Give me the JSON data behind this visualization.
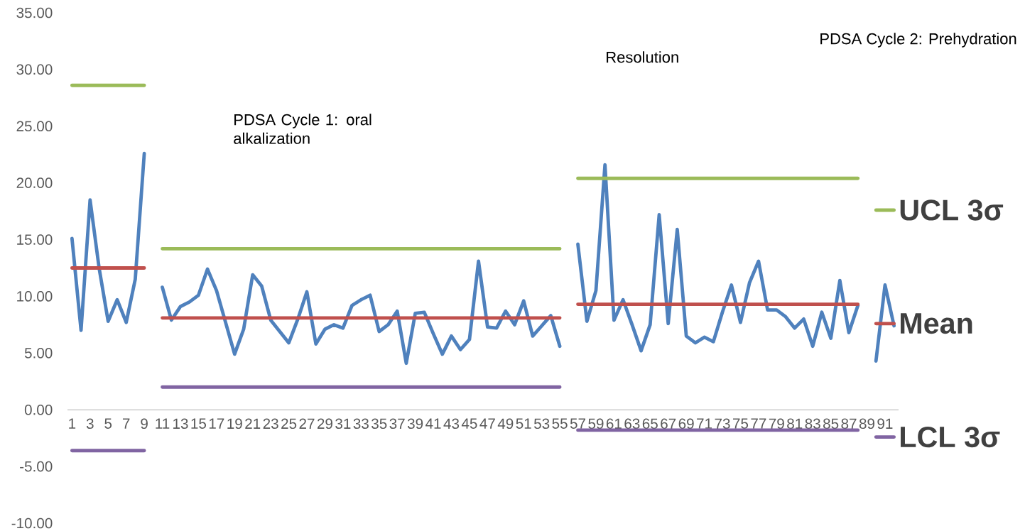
{
  "chart_data": {
    "type": "line",
    "annotations": [
      "PDSA Cycle 1: oral alkalization",
      "Resolution",
      "PDSA Cycle 2: Prehydration"
    ],
    "categories": [
      "1",
      null,
      "3",
      null,
      "5",
      null,
      "7",
      null,
      "9",
      null,
      "11",
      null,
      "13",
      null,
      "15",
      null,
      "17",
      null,
      "19",
      null,
      "21",
      null,
      "23",
      null,
      "25",
      null,
      "27",
      null,
      "29",
      null,
      "31",
      null,
      "33",
      null,
      "35",
      null,
      "37",
      null,
      "39",
      null,
      "41",
      null,
      "43",
      null,
      "45",
      null,
      "47",
      null,
      "49",
      null,
      "51",
      null,
      "53",
      null,
      "55",
      null,
      "57",
      null,
      "59",
      null,
      "61",
      null,
      "63",
      null,
      "65",
      null,
      "67",
      null,
      "69",
      null,
      "71",
      null,
      "73",
      null,
      "75",
      null,
      "77",
      null,
      "79",
      null,
      "81",
      null,
      "83",
      null,
      "85",
      null,
      "87",
      null,
      "89",
      null,
      "91",
      null
    ],
    "series": [
      {
        "color": "#4f81bd",
        "values": [
          15.1,
          7.0,
          18.5,
          12.5,
          7.8,
          9.7,
          7.7,
          11.5,
          22.6,
          null,
          10.8,
          7.9,
          9.1,
          9.5,
          10.1,
          12.4,
          10.5,
          7.7,
          4.9,
          7.1,
          11.9,
          10.9,
          7.9,
          6.9,
          5.9,
          8.0,
          10.4,
          5.8,
          7.1,
          7.5,
          7.2,
          9.2,
          9.7,
          10.1,
          6.9,
          7.5,
          8.7,
          4.1,
          8.5,
          8.6,
          6.7,
          4.9,
          6.5,
          5.3,
          6.2,
          13.1,
          7.3,
          7.2,
          8.7,
          7.5,
          9.6,
          6.5,
          7.4,
          8.3,
          5.6,
          null,
          14.6,
          7.8,
          10.5,
          21.6,
          7.9,
          9.7,
          7.5,
          5.2,
          7.5,
          17.2,
          7.6,
          15.9,
          6.5,
          5.9,
          6.4,
          6.0,
          8.6,
          11.0,
          7.7,
          11.2,
          13.1,
          8.8,
          8.8,
          8.2,
          7.2,
          8.0,
          5.6,
          8.6,
          6.3,
          11.4,
          6.8,
          9.2,
          null,
          4.3,
          11.0,
          7.4
        ]
      },
      {
        "name": "UCL 3σ",
        "color": "#9bbb59",
        "values": [
          28.6,
          28.6,
          28.6,
          28.6,
          28.6,
          28.6,
          28.6,
          28.6,
          28.6,
          null,
          14.2,
          14.2,
          14.2,
          14.2,
          14.2,
          14.2,
          14.2,
          14.2,
          14.2,
          14.2,
          14.2,
          14.2,
          14.2,
          14.2,
          14.2,
          14.2,
          14.2,
          14.2,
          14.2,
          14.2,
          14.2,
          14.2,
          14.2,
          14.2,
          14.2,
          14.2,
          14.2,
          14.2,
          14.2,
          14.2,
          14.2,
          14.2,
          14.2,
          14.2,
          14.2,
          14.2,
          14.2,
          14.2,
          14.2,
          14.2,
          14.2,
          14.2,
          14.2,
          14.2,
          14.2,
          null,
          20.4,
          20.4,
          20.4,
          20.4,
          20.4,
          20.4,
          20.4,
          20.4,
          20.4,
          20.4,
          20.4,
          20.4,
          20.4,
          20.4,
          20.4,
          20.4,
          20.4,
          20.4,
          20.4,
          20.4,
          20.4,
          20.4,
          20.4,
          20.4,
          20.4,
          20.4,
          20.4,
          20.4,
          20.4,
          20.4,
          20.4,
          20.4,
          null,
          17.6,
          17.6,
          17.6
        ]
      },
      {
        "name": "Mean",
        "color": "#c0504d",
        "values": [
          12.5,
          12.5,
          12.5,
          12.5,
          12.5,
          12.5,
          12.5,
          12.5,
          12.5,
          null,
          8.1,
          8.1,
          8.1,
          8.1,
          8.1,
          8.1,
          8.1,
          8.1,
          8.1,
          8.1,
          8.1,
          8.1,
          8.1,
          8.1,
          8.1,
          8.1,
          8.1,
          8.1,
          8.1,
          8.1,
          8.1,
          8.1,
          8.1,
          8.1,
          8.1,
          8.1,
          8.1,
          8.1,
          8.1,
          8.1,
          8.1,
          8.1,
          8.1,
          8.1,
          8.1,
          8.1,
          8.1,
          8.1,
          8.1,
          8.1,
          8.1,
          8.1,
          8.1,
          8.1,
          8.1,
          null,
          9.3,
          9.3,
          9.3,
          9.3,
          9.3,
          9.3,
          9.3,
          9.3,
          9.3,
          9.3,
          9.3,
          9.3,
          9.3,
          9.3,
          9.3,
          9.3,
          9.3,
          9.3,
          9.3,
          9.3,
          9.3,
          9.3,
          9.3,
          9.3,
          9.3,
          9.3,
          9.3,
          9.3,
          9.3,
          9.3,
          9.3,
          9.3,
          null,
          7.6,
          7.6,
          7.6
        ]
      },
      {
        "name": "LCL 3σ",
        "color": "#8064a2",
        "values": [
          -3.6,
          -3.6,
          -3.6,
          -3.6,
          -3.6,
          -3.6,
          -3.6,
          -3.6,
          -3.6,
          null,
          2.0,
          2.0,
          2.0,
          2.0,
          2.0,
          2.0,
          2.0,
          2.0,
          2.0,
          2.0,
          2.0,
          2.0,
          2.0,
          2.0,
          2.0,
          2.0,
          2.0,
          2.0,
          2.0,
          2.0,
          2.0,
          2.0,
          2.0,
          2.0,
          2.0,
          2.0,
          2.0,
          2.0,
          2.0,
          2.0,
          2.0,
          2.0,
          2.0,
          2.0,
          2.0,
          2.0,
          2.0,
          2.0,
          2.0,
          2.0,
          2.0,
          2.0,
          2.0,
          2.0,
          2.0,
          null,
          -1.8,
          -1.8,
          -1.8,
          -1.8,
          -1.8,
          -1.8,
          -1.8,
          -1.8,
          -1.8,
          -1.8,
          -1.8,
          -1.8,
          -1.8,
          -1.8,
          -1.8,
          -1.8,
          -1.8,
          -1.8,
          -1.8,
          -1.8,
          -1.8,
          -1.8,
          -1.8,
          -1.8,
          -1.8,
          -1.8,
          -1.8,
          -1.8,
          -1.8,
          -1.8,
          -1.8,
          -1.8,
          null,
          -2.4,
          -2.4,
          -2.4
        ]
      }
    ],
    "ylim": [
      -10,
      35
    ],
    "yticks": [
      {
        "value": -10,
        "label": "-10.00"
      },
      {
        "value": -5,
        "label": "-5.00"
      },
      {
        "value": 0,
        "label": "0.00"
      },
      {
        "value": 5,
        "label": "5.00"
      },
      {
        "value": 10,
        "label": "10.00"
      },
      {
        "value": 15,
        "label": "15.00"
      },
      {
        "value": 20,
        "label": "20.00"
      },
      {
        "value": 25,
        "label": "25.00"
      },
      {
        "value": 30,
        "label": "30.00"
      },
      {
        "value": 35,
        "label": "35.00"
      }
    ],
    "marker": "none",
    "line_style": "solid"
  }
}
